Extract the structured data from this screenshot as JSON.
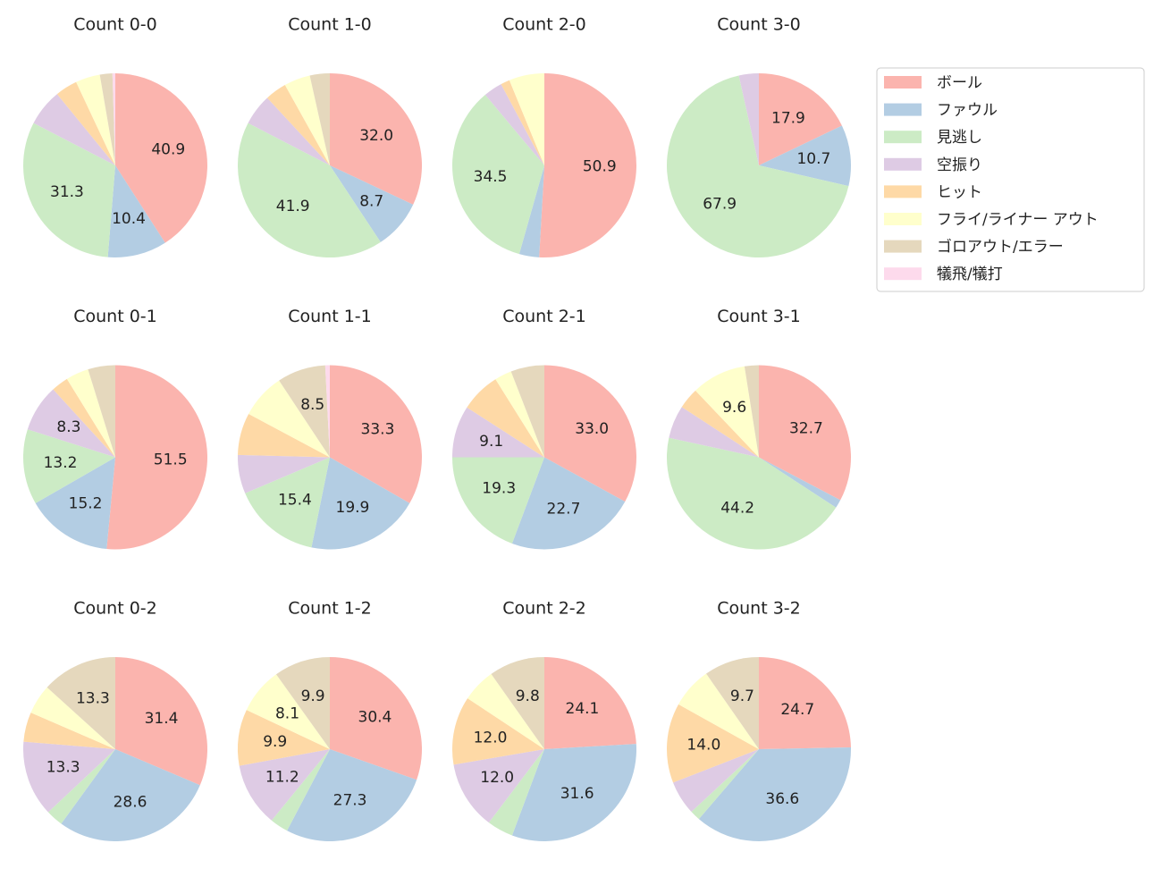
{
  "chart_data": [
    {
      "type": "pie",
      "title": "Count 0-0",
      "values": [
        40.9,
        10.4,
        31.3,
        6.5,
        3.9,
        4.3,
        2.2,
        0.5
      ],
      "value_labels": [
        "40.9",
        "10.4",
        "31.3",
        null,
        null,
        null,
        null,
        null
      ]
    },
    {
      "type": "pie",
      "title": "Count 1-0",
      "values": [
        32.0,
        8.7,
        41.9,
        5.5,
        3.8,
        4.6,
        3.5,
        0
      ],
      "value_labels": [
        "32.0",
        "8.7",
        "41.9",
        null,
        null,
        null,
        null,
        null
      ]
    },
    {
      "type": "pie",
      "title": "Count 2-0",
      "values": [
        50.9,
        3.5,
        34.5,
        3.3,
        1.6,
        6.2,
        0,
        0
      ],
      "value_labels": [
        "50.9",
        null,
        "34.5",
        null,
        null,
        null,
        null,
        null
      ]
    },
    {
      "type": "pie",
      "title": "Count 3-0",
      "values": [
        17.9,
        10.7,
        67.9,
        3.5,
        0,
        0,
        0,
        0
      ],
      "value_labels": [
        "17.9",
        "10.7",
        "67.9",
        null,
        null,
        null,
        null,
        null
      ]
    },
    {
      "type": "pie",
      "title": "Count 0-1",
      "values": [
        51.5,
        15.2,
        13.2,
        8.3,
        3.0,
        4.0,
        4.8,
        0
      ],
      "value_labels": [
        "51.5",
        "15.2",
        "13.2",
        "8.3",
        null,
        null,
        null,
        null
      ]
    },
    {
      "type": "pie",
      "title": "Count 1-1",
      "values": [
        33.3,
        19.9,
        15.4,
        6.8,
        7.4,
        7.9,
        8.5,
        0.8
      ],
      "value_labels": [
        "33.3",
        "19.9",
        "15.4",
        null,
        null,
        null,
        "8.5",
        null
      ]
    },
    {
      "type": "pie",
      "title": "Count 2-1",
      "values": [
        33.0,
        22.7,
        19.3,
        9.1,
        7.0,
        3.0,
        5.9,
        0
      ],
      "value_labels": [
        "33.0",
        "22.7",
        "19.3",
        "9.1",
        null,
        null,
        null,
        null
      ]
    },
    {
      "type": "pie",
      "title": "Count 3-1",
      "values": [
        32.7,
        1.5,
        44.2,
        5.8,
        3.7,
        9.6,
        2.5,
        0
      ],
      "value_labels": [
        "32.7",
        null,
        "44.2",
        null,
        null,
        "9.6",
        null,
        null
      ]
    },
    {
      "type": "pie",
      "title": "Count 0-2",
      "values": [
        31.4,
        28.6,
        3.0,
        13.3,
        5.2,
        5.2,
        13.3,
        0
      ],
      "value_labels": [
        "31.4",
        "28.6",
        null,
        "13.3",
        null,
        null,
        "13.3",
        null
      ]
    },
    {
      "type": "pie",
      "title": "Count 1-2",
      "values": [
        30.4,
        27.3,
        3.2,
        11.2,
        9.9,
        8.1,
        9.9,
        0
      ],
      "value_labels": [
        "30.4",
        "27.3",
        null,
        "11.2",
        "9.9",
        "8.1",
        "9.9",
        null
      ]
    },
    {
      "type": "pie",
      "title": "Count 2-2",
      "values": [
        24.1,
        31.6,
        4.6,
        12.0,
        12.0,
        5.9,
        9.8,
        0
      ],
      "value_labels": [
        "24.1",
        "31.6",
        null,
        "12.0",
        "12.0",
        null,
        "9.8",
        null
      ]
    },
    {
      "type": "pie",
      "title": "Count 3-2",
      "values": [
        24.7,
        36.6,
        1.8,
        6.0,
        14.0,
        7.2,
        9.7,
        0
      ],
      "value_labels": [
        "24.7",
        "36.6",
        null,
        null,
        "14.0",
        null,
        "9.7",
        null
      ]
    }
  ],
  "legend": {
    "entries": [
      "ボール",
      "ファウル",
      "見逃し",
      "空振り",
      "ヒット",
      "フライ/ライナー アウト",
      "ゴロアウト/エラー",
      "犠飛/犠打"
    ],
    "colors": [
      "#fbb4ae",
      "#b3cde3",
      "#ccebc5",
      "#decbe4",
      "#fed9a6",
      "#ffffcc",
      "#e5d8bd",
      "#fddaec"
    ]
  }
}
